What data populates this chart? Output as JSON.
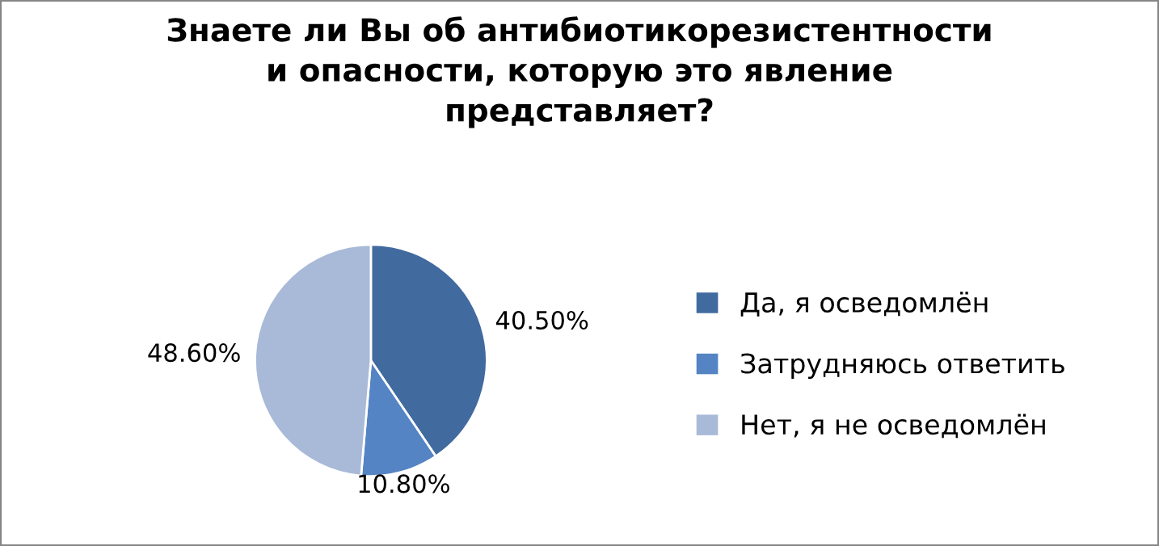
{
  "chart_data": {
    "type": "pie",
    "title": "Знаете ли Вы об антибиотикорезистентности\nи опасности, которую это явление\nпредставляет?",
    "categories": [
      "Да, я осведомлён",
      "Затрудняюсь ответить",
      "Нет, я не осведомлён"
    ],
    "values": [
      40.5,
      10.8,
      48.6
    ],
    "value_labels": [
      "40.50%",
      "10.80%",
      "48.60%"
    ],
    "colors": [
      "#416a9f",
      "#5584c4",
      "#a9b9d8"
    ],
    "legend": "right"
  }
}
